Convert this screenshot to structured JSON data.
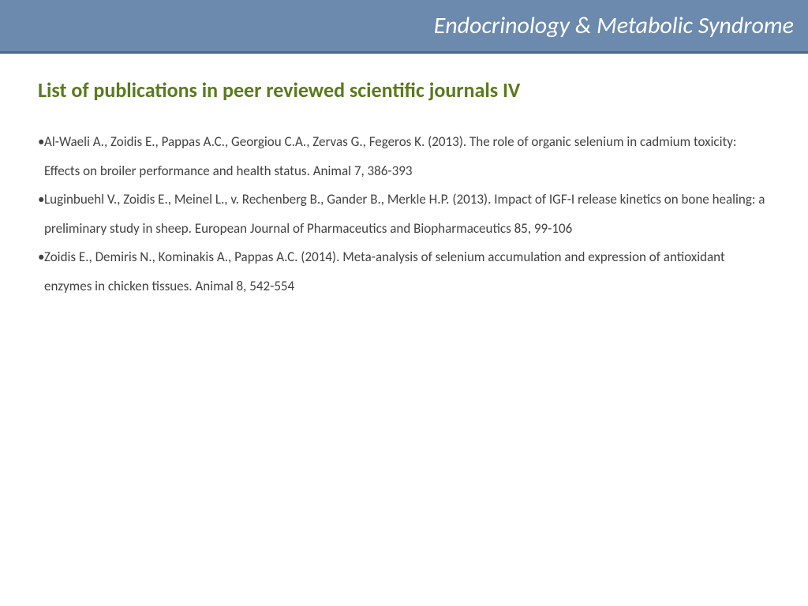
{
  "header": {
    "title": "Endocrinology & Metabolic Syndrome"
  },
  "section": {
    "heading": "List of publications in peer reviewed scientific journals IV"
  },
  "publications": [
    {
      "text": "Al-Waeli A., Zoidis E., Pappas A.C., Georgiou C.A., Zervas G., Fegeros K. (2013). The role of organic selenium in cadmium toxicity: Effects on broiler performance and health status. Animal 7, 386-393"
    },
    {
      "text": "Luginbuehl V., Zoidis E., Meinel L., v. Rechenberg B., Gander B., Merkle H.P. (2013). Impact of IGF-I release kinetics on bone healing: a preliminary study in sheep. European Journal of Pharmaceutics and Biopharmaceutics 85, 99-106"
    },
    {
      "text": "Zoidis E., Demiris N., Kominakis A., Pappas A.C. (2014). Meta-analysis of selenium accumulation and expression of antioxidant enzymes in chicken tissues. Animal 8, 542-554"
    }
  ],
  "colors": {
    "header_bg": "#6b8aad",
    "header_border": "#4a6a8a",
    "header_text": "#ffffff",
    "heading_text": "#5a7a1f",
    "body_text": "#424242",
    "page_bg": "#ffffff"
  }
}
